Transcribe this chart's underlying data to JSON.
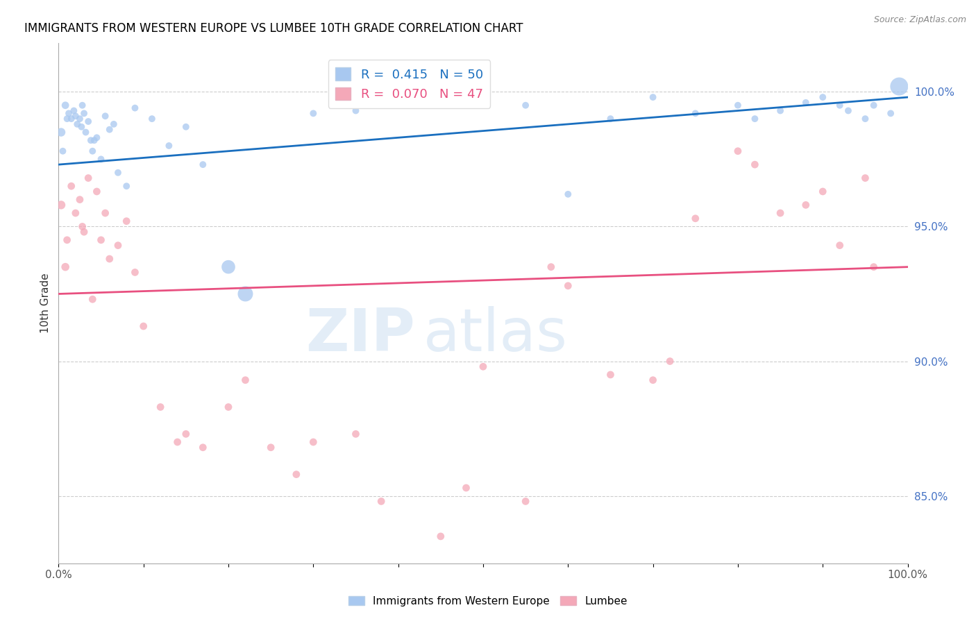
{
  "title": "IMMIGRANTS FROM WESTERN EUROPE VS LUMBEE 10TH GRADE CORRELATION CHART",
  "source": "Source: ZipAtlas.com",
  "ylabel": "10th Grade",
  "right_yticks": [
    85.0,
    90.0,
    95.0,
    100.0
  ],
  "xlim": [
    0.0,
    100.0
  ],
  "ylim": [
    82.5,
    101.8
  ],
  "legend_blue_r": "R =  0.415",
  "legend_blue_n": "N = 50",
  "legend_pink_r": "R =  0.070",
  "legend_pink_n": "N = 47",
  "blue_color": "#A8C8F0",
  "pink_color": "#F4A8B8",
  "trend_blue": "#1A6FBF",
  "trend_pink": "#E85080",
  "watermark_zip": "ZIP",
  "watermark_atlas": "atlas",
  "blue_scatter_x": [
    0.3,
    0.8,
    1.2,
    1.5,
    1.8,
    2.0,
    2.2,
    2.5,
    2.7,
    3.0,
    3.2,
    3.5,
    3.8,
    4.0,
    4.5,
    5.0,
    5.5,
    6.0,
    6.5,
    7.0,
    8.0,
    9.0,
    11.0,
    13.0,
    15.0,
    17.0,
    20.0,
    22.0,
    30.0,
    35.0,
    55.0,
    65.0,
    70.0,
    75.0,
    80.0,
    82.0,
    85.0,
    88.0,
    90.0,
    92.0,
    93.0,
    95.0,
    96.0,
    98.0,
    99.0,
    60.0,
    0.5,
    1.0,
    2.8,
    4.2
  ],
  "blue_scatter_y": [
    98.5,
    99.5,
    99.2,
    99.0,
    99.3,
    99.1,
    98.8,
    99.0,
    98.7,
    99.2,
    98.5,
    98.9,
    98.2,
    97.8,
    98.3,
    97.5,
    99.1,
    98.6,
    98.8,
    97.0,
    96.5,
    99.4,
    99.0,
    98.0,
    98.7,
    97.3,
    93.5,
    92.5,
    99.2,
    99.3,
    99.5,
    99.0,
    99.8,
    99.2,
    99.5,
    99.0,
    99.3,
    99.6,
    99.8,
    99.5,
    99.3,
    99.0,
    99.5,
    99.2,
    100.2,
    96.2,
    97.8,
    99.0,
    99.5,
    98.2
  ],
  "blue_scatter_size": [
    80,
    60,
    50,
    50,
    50,
    50,
    50,
    50,
    50,
    50,
    50,
    50,
    50,
    50,
    50,
    50,
    50,
    50,
    50,
    50,
    50,
    50,
    50,
    50,
    50,
    50,
    200,
    250,
    50,
    50,
    50,
    50,
    50,
    50,
    50,
    50,
    50,
    50,
    50,
    50,
    50,
    50,
    50,
    50,
    350,
    50,
    50,
    50,
    50,
    50
  ],
  "pink_scatter_x": [
    0.3,
    0.8,
    1.5,
    2.0,
    2.5,
    3.0,
    3.5,
    4.0,
    5.0,
    5.5,
    6.0,
    7.0,
    8.0,
    9.0,
    10.0,
    12.0,
    14.0,
    15.0,
    17.0,
    20.0,
    22.0,
    25.0,
    28.0,
    30.0,
    35.0,
    38.0,
    45.0,
    48.0,
    50.0,
    55.0,
    58.0,
    60.0,
    65.0,
    70.0,
    72.0,
    75.0,
    80.0,
    82.0,
    85.0,
    88.0,
    90.0,
    92.0,
    95.0,
    96.0,
    1.0,
    2.8,
    4.5
  ],
  "pink_scatter_y": [
    95.8,
    93.5,
    96.5,
    95.5,
    96.0,
    94.8,
    96.8,
    92.3,
    94.5,
    95.5,
    93.8,
    94.3,
    95.2,
    93.3,
    91.3,
    88.3,
    87.0,
    87.3,
    86.8,
    88.3,
    89.3,
    86.8,
    85.8,
    87.0,
    87.3,
    84.8,
    83.5,
    85.3,
    89.8,
    84.8,
    93.5,
    92.8,
    89.5,
    89.3,
    90.0,
    95.3,
    97.8,
    97.3,
    95.5,
    95.8,
    96.3,
    94.3,
    96.8,
    93.5,
    94.5,
    95.0,
    96.3
  ],
  "pink_scatter_size": [
    80,
    70,
    60,
    60,
    60,
    60,
    60,
    60,
    60,
    60,
    60,
    60,
    60,
    60,
    60,
    60,
    60,
    60,
    60,
    60,
    60,
    60,
    60,
    60,
    60,
    60,
    60,
    60,
    60,
    60,
    60,
    60,
    60,
    60,
    60,
    60,
    60,
    60,
    60,
    60,
    60,
    60,
    60,
    60,
    60,
    60,
    60
  ],
  "blue_trend_x0": 0.0,
  "blue_trend_x1": 100.0,
  "blue_trend_y0": 97.3,
  "blue_trend_y1": 99.8,
  "pink_trend_x0": 0.0,
  "pink_trend_x1": 100.0,
  "pink_trend_y0": 92.5,
  "pink_trend_y1": 93.5,
  "grid_color": "#CCCCCC",
  "bg_color": "#FFFFFF",
  "right_axis_color": "#4472C4"
}
